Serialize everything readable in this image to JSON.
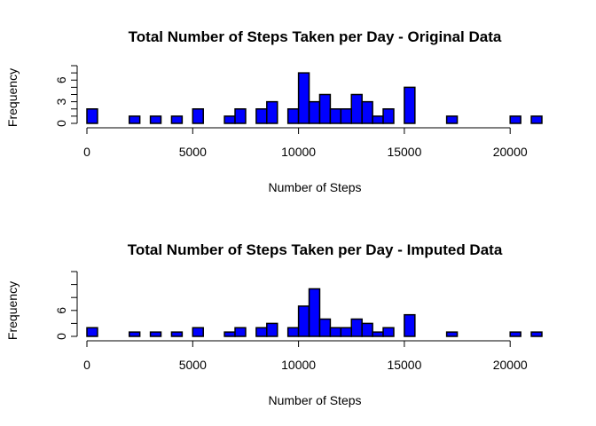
{
  "chart_data": [
    {
      "type": "bar",
      "title": "Total Number of Steps Taken per Day - Original Data",
      "xlabel": "Number of Steps",
      "ylabel": "Frequency",
      "xlim": [
        0,
        21500
      ],
      "ylim": [
        0,
        8
      ],
      "bin_width": 500,
      "x_ticks": [
        0,
        5000,
        10000,
        15000,
        20000
      ],
      "y_ticks": [
        0,
        3,
        6
      ],
      "bar_color": "#0000ff",
      "grid": false,
      "legend": "none",
      "bins": [
        {
          "x": 0,
          "count": 2
        },
        {
          "x": 2000,
          "count": 1
        },
        {
          "x": 3000,
          "count": 1
        },
        {
          "x": 4000,
          "count": 1
        },
        {
          "x": 5000,
          "count": 2
        },
        {
          "x": 6500,
          "count": 1
        },
        {
          "x": 7000,
          "count": 2
        },
        {
          "x": 8000,
          "count": 2
        },
        {
          "x": 8500,
          "count": 3
        },
        {
          "x": 9500,
          "count": 2
        },
        {
          "x": 10000,
          "count": 7
        },
        {
          "x": 10500,
          "count": 3
        },
        {
          "x": 11000,
          "count": 4
        },
        {
          "x": 11500,
          "count": 2
        },
        {
          "x": 12000,
          "count": 2
        },
        {
          "x": 12500,
          "count": 4
        },
        {
          "x": 13000,
          "count": 3
        },
        {
          "x": 13500,
          "count": 1
        },
        {
          "x": 14000,
          "count": 2
        },
        {
          "x": 15000,
          "count": 5
        },
        {
          "x": 17000,
          "count": 1
        },
        {
          "x": 20000,
          "count": 1
        },
        {
          "x": 21000,
          "count": 1
        }
      ]
    },
    {
      "type": "bar",
      "title": "Total Number of Steps Taken per Day - Imputed Data",
      "xlabel": "Number of Steps",
      "ylabel": "Frequency",
      "xlim": [
        0,
        21500
      ],
      "ylim": [
        0,
        15
      ],
      "bin_width": 500,
      "x_ticks": [
        0,
        5000,
        10000,
        15000,
        20000
      ],
      "y_ticks": [
        0,
        6
      ],
      "bar_color": "#0000ff",
      "grid": false,
      "legend": "none",
      "bins": [
        {
          "x": 0,
          "count": 2
        },
        {
          "x": 2000,
          "count": 1
        },
        {
          "x": 3000,
          "count": 1
        },
        {
          "x": 4000,
          "count": 1
        },
        {
          "x": 5000,
          "count": 2
        },
        {
          "x": 6500,
          "count": 1
        },
        {
          "x": 7000,
          "count": 2
        },
        {
          "x": 8000,
          "count": 2
        },
        {
          "x": 8500,
          "count": 3
        },
        {
          "x": 9500,
          "count": 2
        },
        {
          "x": 10000,
          "count": 7
        },
        {
          "x": 10500,
          "count": 11
        },
        {
          "x": 11000,
          "count": 4
        },
        {
          "x": 11500,
          "count": 2
        },
        {
          "x": 12000,
          "count": 2
        },
        {
          "x": 12500,
          "count": 4
        },
        {
          "x": 13000,
          "count": 3
        },
        {
          "x": 13500,
          "count": 1
        },
        {
          "x": 14000,
          "count": 2
        },
        {
          "x": 15000,
          "count": 5
        },
        {
          "x": 17000,
          "count": 1
        },
        {
          "x": 20000,
          "count": 1
        },
        {
          "x": 21000,
          "count": 1
        }
      ]
    }
  ]
}
